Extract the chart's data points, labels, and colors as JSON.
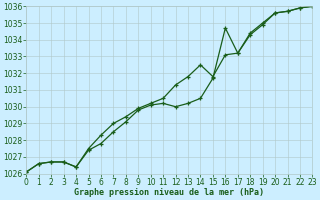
{
  "title": "Graphe pression niveau de la mer (hPa)",
  "background_color": "#cceeff",
  "grid_color": "#b0c8c8",
  "line_color": "#1a5e1a",
  "xlim": [
    0,
    23
  ],
  "ylim": [
    1026,
    1036
  ],
  "xticks": [
    0,
    1,
    2,
    3,
    4,
    5,
    6,
    7,
    8,
    9,
    10,
    11,
    12,
    13,
    14,
    15,
    16,
    17,
    18,
    19,
    20,
    21,
    22,
    23
  ],
  "yticks": [
    1026,
    1027,
    1028,
    1029,
    1030,
    1031,
    1032,
    1033,
    1034,
    1035,
    1036
  ],
  "series1_x": [
    0,
    1,
    2,
    3,
    4,
    5,
    6,
    7,
    8,
    9,
    10,
    11,
    12,
    13,
    14,
    15,
    16,
    17,
    18,
    19,
    20,
    21,
    22,
    23
  ],
  "series1_y": [
    1026.1,
    1026.6,
    1026.7,
    1026.7,
    1026.4,
    1027.4,
    1027.8,
    1028.5,
    1029.1,
    1029.8,
    1030.1,
    1030.2,
    1030.0,
    1030.2,
    1030.5,
    1031.7,
    1034.7,
    1033.2,
    1034.4,
    1035.0,
    1035.6,
    1035.7,
    1035.9,
    1036.0
  ],
  "series2_x": [
    0,
    1,
    2,
    3,
    4,
    5,
    6,
    7,
    8,
    9,
    10,
    11,
    12,
    13,
    14,
    15,
    16,
    17,
    18,
    19,
    20,
    21,
    22,
    23
  ],
  "series2_y": [
    1026.1,
    1026.6,
    1026.7,
    1026.7,
    1026.4,
    1027.5,
    1028.3,
    1029.0,
    1029.4,
    1029.9,
    1030.2,
    1030.5,
    1031.3,
    1031.8,
    1032.5,
    1031.8,
    1033.1,
    1033.2,
    1034.3,
    1034.9,
    1035.6,
    1035.7,
    1035.9,
    1036.0
  ],
  "xlabel_fontsize": 6,
  "tick_fontsize": 5.5
}
